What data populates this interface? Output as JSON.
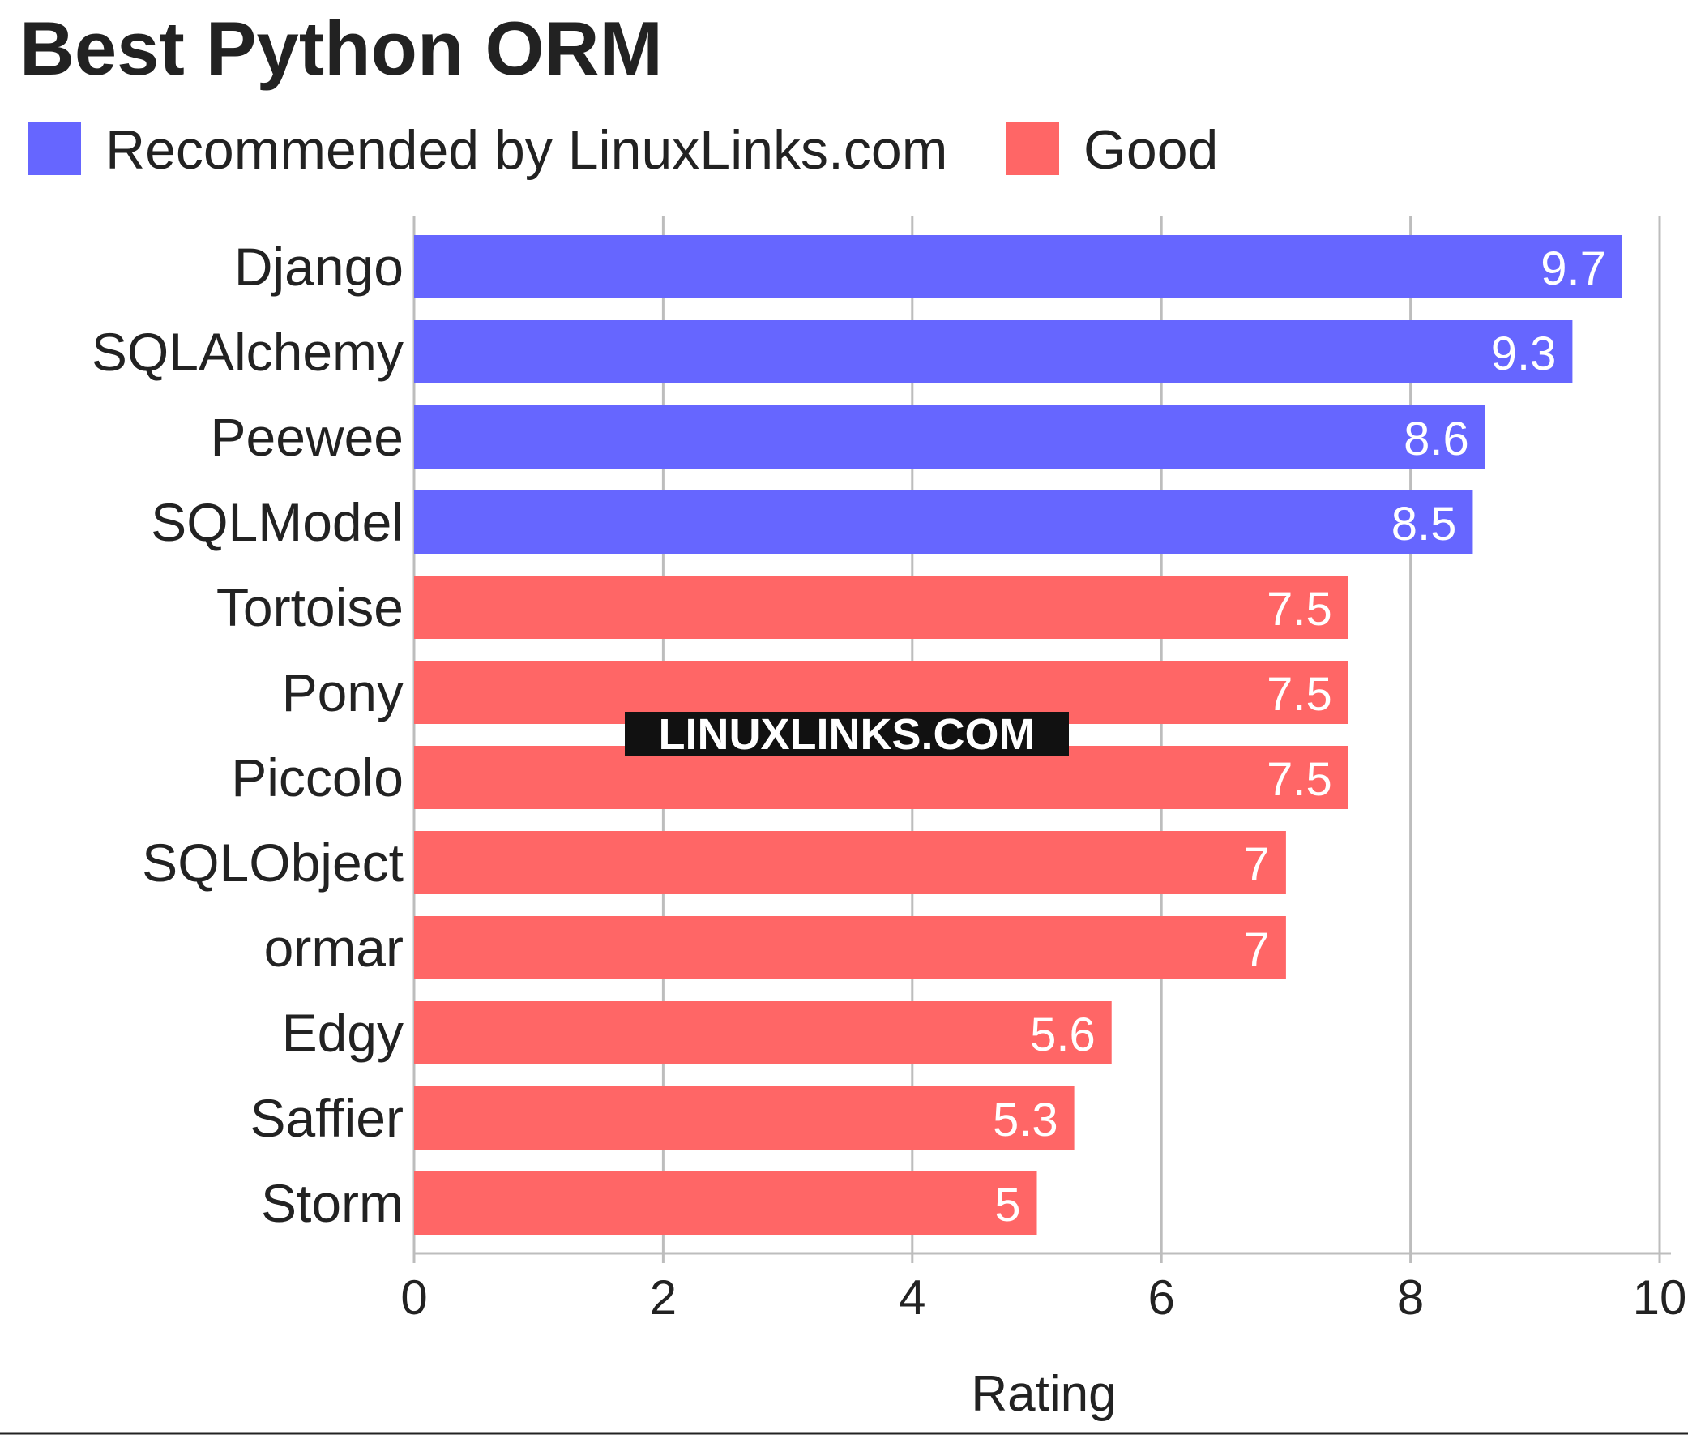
{
  "chart_data": {
    "type": "bar",
    "orientation": "horizontal",
    "title": "Best Python ORM",
    "xlabel": "Rating",
    "ylabel": "",
    "xlim": [
      0,
      10
    ],
    "x_ticks": [
      "0",
      "2",
      "4",
      "6",
      "8",
      "10"
    ],
    "grid": "vertical",
    "legend_position": "top-left",
    "legend": [
      {
        "label": "Recommended by LinuxLinks.com",
        "color": "#6666ff"
      },
      {
        "label": "Good",
        "color": "#ff6666"
      }
    ],
    "categories": [
      "Django",
      "SQLAlchemy",
      "Peewee",
      "SQLModel",
      "Tortoise",
      "Pony",
      "Piccolo",
      "SQLObject",
      "ormar",
      "Edgy",
      "Saffier",
      "Storm"
    ],
    "values": [
      9.7,
      9.3,
      8.6,
      8.5,
      7.5,
      7.5,
      7.5,
      7,
      7,
      5.6,
      5.3,
      5
    ],
    "data_labels": [
      "9.7",
      "9.3",
      "8.6",
      "8.5",
      "7.5",
      "7.5",
      "7.5",
      "7",
      "7",
      "5.6",
      "5.3",
      "5"
    ],
    "groups": [
      "Recommended by LinuxLinks.com",
      "Recommended by LinuxLinks.com",
      "Recommended by LinuxLinks.com",
      "Recommended by LinuxLinks.com",
      "Good",
      "Good",
      "Good",
      "Good",
      "Good",
      "Good",
      "Good",
      "Good"
    ],
    "watermark": "LINUXLINKS.COM"
  }
}
